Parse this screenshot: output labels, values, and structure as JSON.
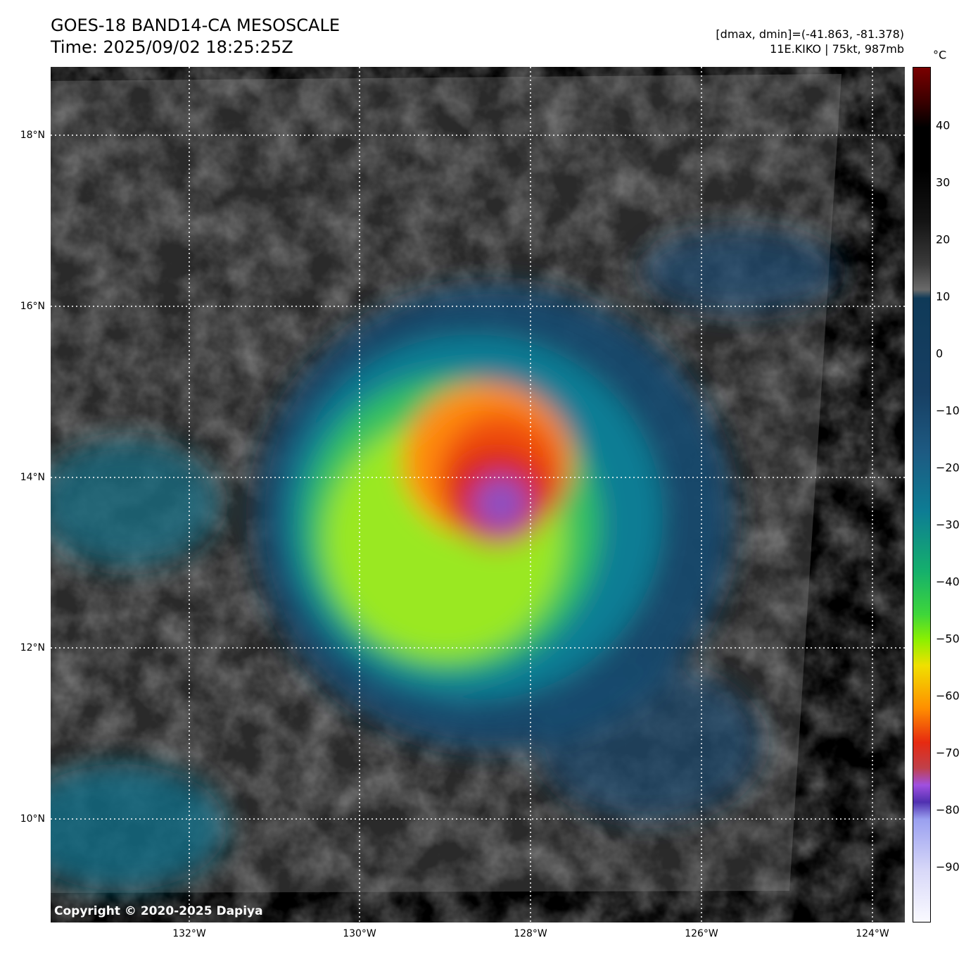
{
  "title_line1": "GOES-18 BAND14-CA MESOSCALE",
  "title_line2": "Time: 2025/09/02 18:25:25Z",
  "dmax_dmin": "[dmax, dmin]=(-41.863, -81.378)",
  "storm_info": "11E.KIKO | 75kt, 987mb",
  "copyright": "Copyright © 2020-2025 Dapiya",
  "lat_labels": [
    "18°N",
    "16°N",
    "14°N",
    "12°N",
    "10°N"
  ],
  "lon_labels": [
    "132°W",
    "130°W",
    "128°W",
    "126°W",
    "124°W"
  ],
  "colorbar": {
    "unit": "°C",
    "ticks": [
      "40",
      "30",
      "20",
      "10",
      "0",
      "−10",
      "−20",
      "−30",
      "−40",
      "−50",
      "−60",
      "−70",
      "−80",
      "−90"
    ],
    "range": [
      -100,
      50
    ]
  }
}
